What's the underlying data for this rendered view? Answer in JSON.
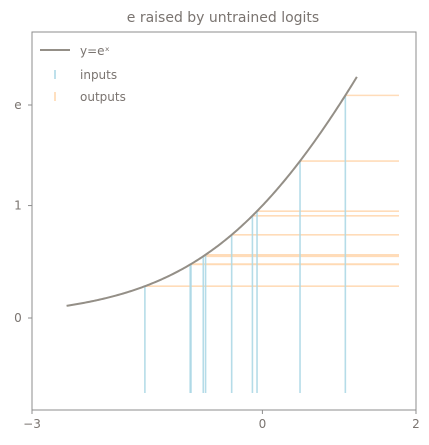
{
  "chart_data": {
    "type": "line",
    "title": "e raised by untrained logits",
    "xlabel": "",
    "ylabel": "",
    "xlim": [
      -3,
      2
    ],
    "grid": false,
    "legend_position": "top-left",
    "x_ticks": [
      {
        "value": -3,
        "label": "−3"
      },
      {
        "value": 0,
        "label": "0"
      },
      {
        "value": 2,
        "label": "2"
      }
    ],
    "y_ticks": [
      {
        "value": 0,
        "label": "0"
      },
      {
        "value": 1,
        "label": "1"
      },
      {
        "value": 2.718,
        "label": "e"
      }
    ],
    "curve": {
      "name": "y=eˣ",
      "function": "exp",
      "x_range": [
        -2.55,
        1.23
      ],
      "color": "#948f87"
    },
    "inputs": {
      "name": "inputs",
      "color": "#add8e6",
      "values": [
        -1.53,
        -0.94,
        -0.93,
        -0.77,
        -0.74,
        -0.4,
        -0.13,
        -0.07,
        0.49,
        1.08
      ]
    },
    "outputs": {
      "name": "outputs",
      "color": "#ffd8b1",
      "values": [
        0.217,
        0.391,
        0.395,
        0.463,
        0.477,
        0.67,
        0.878,
        0.932,
        1.632,
        2.945
      ]
    },
    "colors": {
      "axis": "#8c8c8c",
      "text": "#7a7470"
    }
  }
}
